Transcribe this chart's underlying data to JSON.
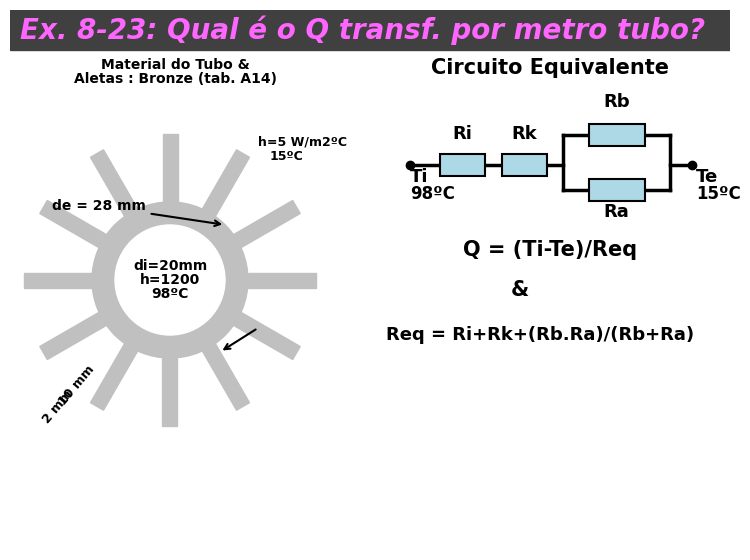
{
  "title": "Ex. 8-23: Qual é o Q transf. por metro tubo?",
  "title_color": "#FF66FF",
  "title_fontsize": 20,
  "bg_color": "#FFFFFF",
  "left_label1": "Material do Tubo &",
  "left_label2": "Aletas : Bronze (tab. A14)",
  "tube_color": "#C0C0C0",
  "num_fins": 12,
  "center_text1": "di=20mm",
  "center_text2": "h=1200",
  "center_text3": "98ºC",
  "h_label1": "h=5 W/m2ºC",
  "h_label2": "15ºC",
  "de_label": "de = 28 mm",
  "fin10_label": "10 mm",
  "fin2_label": "2 mm",
  "circuit_title": "Circuito Equivalente",
  "ri_label": "Ri",
  "rk_label": "Rk",
  "rb_label": "Rb",
  "ra_label": "Ra",
  "ti_label": "Ti",
  "ti_temp": "98ºC",
  "te_label": "Te",
  "te_temp": "15ºC",
  "box_color": "#ADD8E6",
  "box_edge": "#000000",
  "q_formula": "Q = (Ti-Te)/Req",
  "amp": "&",
  "req_formula": "Req = Ri+Rk+(Rb.Ra)/(Rb+Ra)"
}
